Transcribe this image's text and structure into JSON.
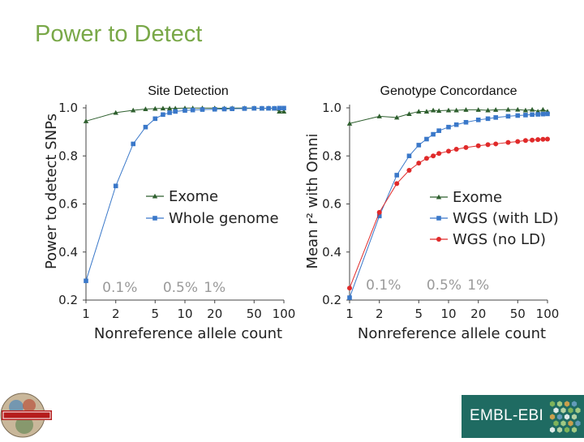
{
  "slide": {
    "title": "Power to Detect"
  },
  "chart_data": [
    {
      "type": "line",
      "title": "Site Detection",
      "xlabel": "Nonreference allele count",
      "ylabel": "Power to detect SNPs",
      "xscale": "log",
      "xlim": [
        1,
        100
      ],
      "ylim": [
        0.2,
        1.0
      ],
      "x_ticks": [
        1,
        2,
        5,
        10,
        20,
        50,
        100
      ],
      "x_tick_labels": [
        "1",
        "2",
        "5",
        "10",
        "20",
        "50",
        "100"
      ],
      "y_ticks": [
        0.2,
        0.4,
        0.6,
        0.8,
        1.0
      ],
      "y_tick_labels": [
        "0.2",
        "0.4",
        "0.6",
        "0.8",
        "1.0"
      ],
      "legend_position": "center",
      "annotations": [
        {
          "text": "0.1%",
          "x": 2.2
        },
        {
          "text": "0.5%",
          "x": 9
        },
        {
          "text": "1%",
          "x": 20
        }
      ],
      "series": [
        {
          "name": "Exome",
          "color": "#2e5f2e",
          "marker": "triangle",
          "x": [
            1,
            2,
            3,
            4,
            5,
            6,
            7,
            8,
            10,
            12,
            15,
            20,
            25,
            30,
            40,
            50,
            60,
            70,
            80,
            90,
            100
          ],
          "y": [
            0.945,
            0.98,
            0.99,
            0.995,
            0.997,
            0.998,
            0.998,
            0.998,
            0.999,
            0.999,
            0.999,
            0.999,
            0.998,
            0.999,
            0.999,
            0.999,
            0.998,
            0.999,
            0.998,
            0.985,
            0.985
          ]
        },
        {
          "name": "Whole genome",
          "color": "#3a78c9",
          "marker": "square",
          "x": [
            1,
            2,
            3,
            4,
            5,
            6,
            7,
            8,
            10,
            12,
            15,
            20,
            25,
            30,
            40,
            50,
            60,
            70,
            80,
            90,
            100
          ],
          "y": [
            0.28,
            0.675,
            0.85,
            0.92,
            0.955,
            0.972,
            0.98,
            0.985,
            0.989,
            0.991,
            0.993,
            0.994,
            0.995,
            0.996,
            0.997,
            0.998,
            0.998,
            0.998,
            0.998,
            0.999,
            0.999
          ]
        }
      ]
    },
    {
      "type": "line",
      "title": "Genotype Concordance",
      "xlabel": "Nonreference allele count",
      "ylabel": "Mean r² with Omni",
      "xscale": "log",
      "xlim": [
        1,
        100
      ],
      "ylim": [
        0.2,
        1.0
      ],
      "x_ticks": [
        1,
        2,
        5,
        10,
        20,
        50,
        100
      ],
      "x_tick_labels": [
        "1",
        "2",
        "5",
        "10",
        "20",
        "50",
        "100"
      ],
      "y_ticks": [
        0.2,
        0.4,
        0.6,
        0.8,
        1.0
      ],
      "y_tick_labels": [
        "0.2",
        "0.4",
        "0.6",
        "0.8",
        "1.0"
      ],
      "legend_position": "center-right",
      "annotations": [
        {
          "text": "0.1%",
          "x": 2.2
        },
        {
          "text": "0.5%",
          "x": 9
        },
        {
          "text": "1%",
          "x": 20
        }
      ],
      "series": [
        {
          "name": "Exome",
          "color": "#2e5f2e",
          "marker": "triangle",
          "x": [
            1,
            2,
            3,
            4,
            5,
            6,
            7,
            8,
            10,
            12,
            15,
            20,
            25,
            30,
            40,
            50,
            60,
            70,
            80,
            90,
            100
          ],
          "y": [
            0.935,
            0.965,
            0.96,
            0.975,
            0.985,
            0.985,
            0.99,
            0.988,
            0.99,
            0.99,
            0.992,
            0.992,
            0.99,
            0.992,
            0.993,
            0.993,
            0.99,
            0.993,
            0.985,
            0.993,
            0.985
          ]
        },
        {
          "name": "WGS (with LD)",
          "color": "#3a78c9",
          "marker": "square",
          "x": [
            1,
            2,
            3,
            4,
            5,
            6,
            7,
            8,
            10,
            12,
            15,
            20,
            25,
            30,
            40,
            50,
            60,
            70,
            80,
            90,
            100
          ],
          "y": [
            0.21,
            0.55,
            0.72,
            0.8,
            0.845,
            0.87,
            0.89,
            0.905,
            0.92,
            0.93,
            0.94,
            0.95,
            0.955,
            0.96,
            0.965,
            0.968,
            0.97,
            0.972,
            0.973,
            0.974,
            0.975
          ]
        },
        {
          "name": "WGS (no LD)",
          "color": "#e02a2a",
          "marker": "circle",
          "x": [
            1,
            2,
            3,
            4,
            5,
            6,
            7,
            8,
            10,
            12,
            15,
            20,
            25,
            30,
            40,
            50,
            60,
            70,
            80,
            90,
            100
          ],
          "y": [
            0.25,
            0.565,
            0.685,
            0.74,
            0.77,
            0.79,
            0.8,
            0.81,
            0.82,
            0.828,
            0.835,
            0.842,
            0.847,
            0.85,
            0.856,
            0.86,
            0.864,
            0.866,
            0.868,
            0.869,
            0.87
          ]
        }
      ]
    }
  ],
  "logos": {
    "left_logo": "1000-genomes-logo",
    "right_logo_text": "EMBL-EBI"
  }
}
